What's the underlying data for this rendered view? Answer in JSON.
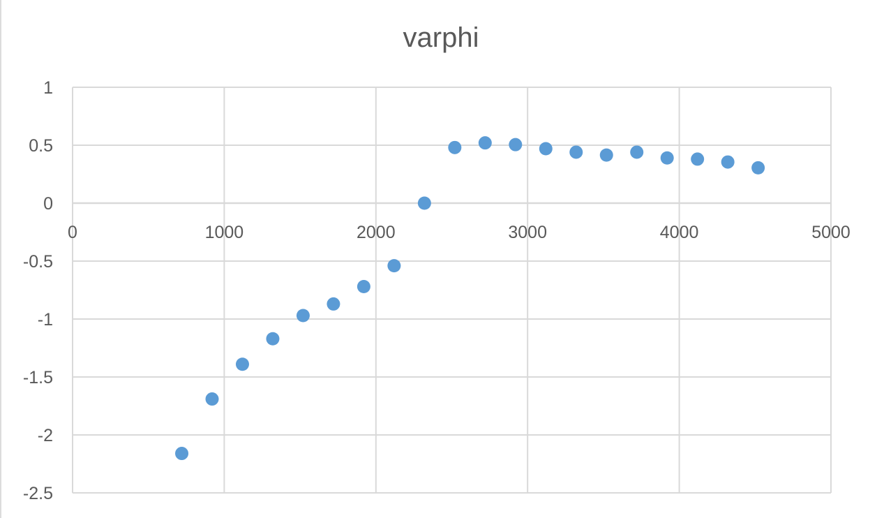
{
  "chart_data": {
    "type": "scatter",
    "title": "varphi",
    "xlabel": "",
    "ylabel": "",
    "xlim": [
      0,
      5000
    ],
    "ylim": [
      -2.5,
      1
    ],
    "x_ticks": [
      "0",
      "1000",
      "2000",
      "3000",
      "4000",
      "5000"
    ],
    "y_ticks": [
      "1",
      "0.5",
      "0",
      "-0.5",
      "-1",
      "-1.5",
      "-2",
      "-2.5"
    ],
    "x_tick_values": [
      0,
      1000,
      2000,
      3000,
      4000,
      5000
    ],
    "y_tick_values": [
      1,
      0.5,
      0,
      -0.5,
      -1,
      -1.5,
      -2,
      -2.5
    ],
    "grid": true,
    "legend": "none",
    "marker_color": "#5b9bd5",
    "series": [
      {
        "points": [
          [
            720,
            -2.16
          ],
          [
            920,
            -1.69
          ],
          [
            1120,
            -1.39
          ],
          [
            1320,
            -1.17
          ],
          [
            1520,
            -0.97
          ],
          [
            1720,
            -0.87
          ],
          [
            1920,
            -0.72
          ],
          [
            2120,
            -0.54
          ],
          [
            2320,
            0.0
          ],
          [
            2520,
            0.48
          ],
          [
            2720,
            0.52
          ],
          [
            2920,
            0.505
          ],
          [
            3120,
            0.47
          ],
          [
            3320,
            0.44
          ],
          [
            3520,
            0.415
          ],
          [
            3720,
            0.44
          ],
          [
            3920,
            0.39
          ],
          [
            4120,
            0.38
          ],
          [
            4320,
            0.355
          ],
          [
            4520,
            0.305
          ]
        ]
      }
    ]
  }
}
